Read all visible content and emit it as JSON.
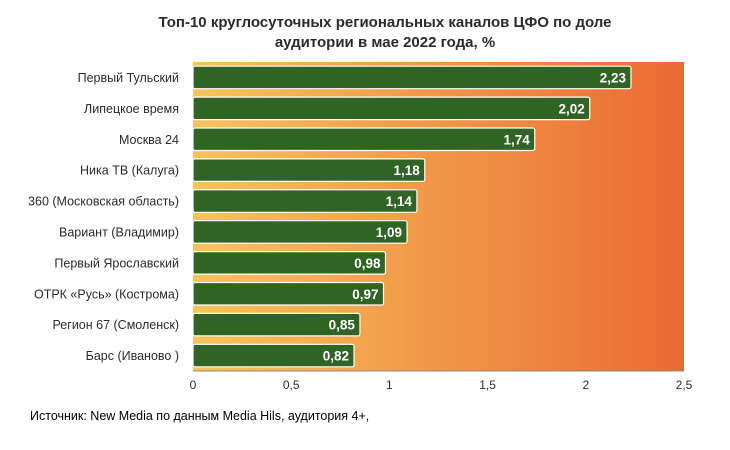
{
  "chart_data": {
    "type": "bar",
    "orientation": "horizontal",
    "title": "Топ-10 круглосуточных региональных каналов ЦФО по доле аудитории в мае 2022 года, %",
    "categories": [
      "Первый Тульский",
      "Липецкое время",
      "Москва 24",
      "Ника ТВ (Калуга)",
      "360 (Московская область)",
      "Вариант (Владимир)",
      "Первый Ярославский",
      "ОТРК «Русь» (Кострома)",
      "Регион 67 (Смоленск)",
      "Барс (Иваново )"
    ],
    "values": [
      2.23,
      2.02,
      1.74,
      1.18,
      1.14,
      1.09,
      0.98,
      0.97,
      0.85,
      0.82
    ],
    "value_labels": [
      "2,23",
      "2,02",
      "1,74",
      "1,18",
      "1,14",
      "1,09",
      "0,98",
      "0,97",
      "0,85",
      "0,82"
    ],
    "xlim": [
      0,
      2.5
    ],
    "xticks": [
      0,
      0.5,
      1,
      1.5,
      2,
      2.5
    ],
    "xtick_labels": [
      "0",
      "0,5",
      "1",
      "1,5",
      "2",
      "2,5"
    ],
    "xlabel": "",
    "ylabel": "",
    "grid": false,
    "legend": "none",
    "colors": {
      "bar": "#2f6424",
      "bar_edge": "#ffffff",
      "label_text": "#ffffff",
      "bg_gradient_start": "#f7c35c",
      "bg_gradient_end": "#ea6a33",
      "axis": "#888888",
      "text": "#2b2b2b"
    }
  },
  "source_note": "Источник: New Media по данным Media Hils, аудитория 4+,"
}
